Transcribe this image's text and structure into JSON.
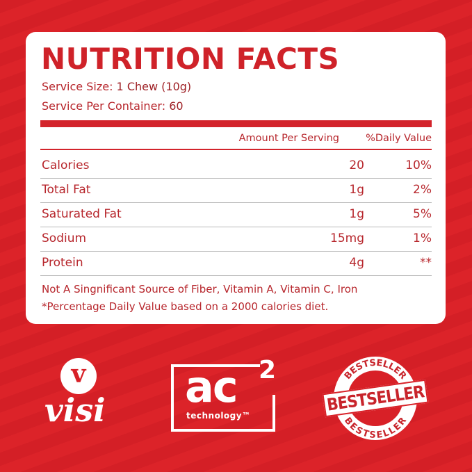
{
  "title": "NUTRITION FACTS",
  "serving_size": {
    "label": "Service Size:",
    "value": "1 Chew (10g)"
  },
  "servings_per_container": {
    "label": "Service Per Container:",
    "value": "60"
  },
  "headers": {
    "amount": "Amount Per Serving",
    "dv": "%Daily Value"
  },
  "rows": [
    {
      "name": "Calories",
      "amount": "20",
      "dv": "10%"
    },
    {
      "name": "Total Fat",
      "amount": "1g",
      "dv": "2%"
    },
    {
      "name": "Saturated Fat",
      "amount": "1g",
      "dv": "5%"
    },
    {
      "name": "Sodium",
      "amount": "15mg",
      "dv": "1%"
    },
    {
      "name": "Protein",
      "amount": "4g",
      "dv": "**"
    }
  ],
  "notes": [
    "Not A Singnificant Source of Fiber, Vitamin A, Vitamin C, Iron",
    "*Percentage Daily Value based on a 2000 calories diet."
  ],
  "logos": {
    "visi_letter": "v",
    "visi": "visi",
    "ac_main": "ac",
    "ac_sup": "2",
    "ac_sub": "technology™",
    "stamp_arc": "BESTSELLER",
    "stamp_center": "BESTSELLER",
    "stamp_bottom": "BESTSELLER"
  },
  "colors": {
    "brand_red": "#d82027",
    "text_red": "#b7262c"
  }
}
